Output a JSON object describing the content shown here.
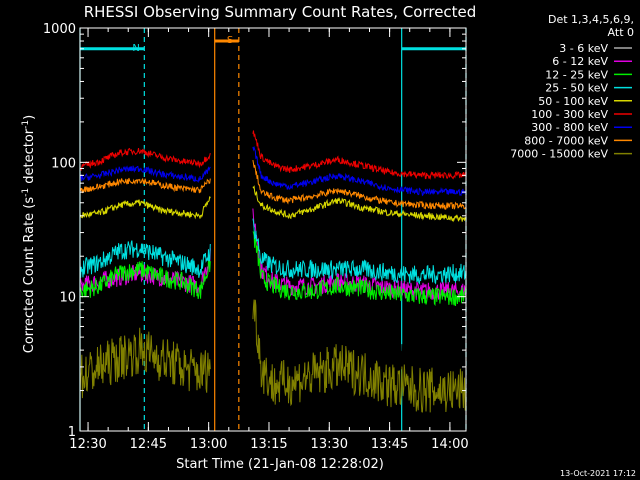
{
  "chart_data": {
    "type": "line",
    "title": "RHESSI Observing Summary Count Rates, Corrected",
    "xlabel": "Start Time (21-Jan-08 12:28:02)",
    "ylabel_main": "Corrected Count Rate (s",
    "ylabel_sup1": "-1",
    "ylabel_mid": " detector",
    "ylabel_sup2": "-1",
    "ylabel_end": ")",
    "yscale": "log",
    "ylim": [
      1,
      1000
    ],
    "xlim_minutes": [
      0,
      96
    ],
    "x_ticks": [
      {
        "min": 2,
        "label": "12:30"
      },
      {
        "min": 17,
        "label": "12:45"
      },
      {
        "min": 32,
        "label": "13:00"
      },
      {
        "min": 47,
        "label": "13:15"
      },
      {
        "min": 62,
        "label": "13:30"
      },
      {
        "min": 77,
        "label": "13:45"
      },
      {
        "min": 92,
        "label": "14:00"
      }
    ],
    "y_ticks": [
      {
        "value": 1,
        "label": "1"
      },
      {
        "value": 10,
        "label": "10"
      },
      {
        "value": 100,
        "label": "100"
      },
      {
        "value": 1000,
        "label": "1000"
      }
    ],
    "legend_header": [
      "Det 1,3,4,5,6,9,",
      "Att 0"
    ],
    "legend_position": "right",
    "series": [
      {
        "name": "3 - 6 keV",
        "color": "#000000",
        "x": [
          0,
          5,
          10,
          15,
          20,
          25,
          30,
          32.5
        ],
        "y": [
          95,
          105,
          120,
          125,
          112,
          104,
          100,
          115
        ]
      },
      {
        "name": "6 - 12 keV",
        "color": "#e000e0",
        "x": [
          0,
          5,
          10,
          15,
          20,
          25,
          30,
          32.5
        ],
        "y": [
          12,
          13,
          14,
          15,
          14,
          13,
          12,
          20
        ]
      },
      {
        "name": "12 - 25 keV",
        "color": "#00ee00",
        "x": [
          0,
          5,
          10,
          15,
          20,
          25,
          30,
          32.5
        ],
        "y": [
          11,
          12,
          15,
          16,
          14,
          13,
          11,
          18
        ]
      },
      {
        "name": "25 - 50 keV",
        "color": "#00e0e0",
        "x": [
          0,
          5,
          10,
          15,
          20,
          25,
          30,
          32.5
        ],
        "y": [
          16,
          18,
          22,
          23,
          20,
          18,
          16,
          22
        ]
      },
      {
        "name": "50 - 100 keV",
        "color": "#d8d800",
        "x": [
          0,
          5,
          10,
          15,
          20,
          25,
          30,
          32.5
        ],
        "y": [
          40,
          42,
          48,
          50,
          44,
          42,
          40,
          55
        ]
      },
      {
        "name": "100 - 300 keV",
        "color": "#ee0000",
        "x": [
          0,
          5,
          10,
          15,
          20,
          25,
          30,
          32.5
        ],
        "y": [
          92,
          102,
          118,
          122,
          110,
          102,
          98,
          115
        ]
      },
      {
        "name": "300 - 800 keV",
        "color": "#0000ee",
        "x": [
          0,
          5,
          10,
          15,
          20,
          25,
          30,
          32.5
        ],
        "y": [
          76,
          80,
          88,
          90,
          82,
          78,
          75,
          90
        ]
      },
      {
        "name": "800 - 7000 keV",
        "color": "#ff8800",
        "x": [
          0,
          5,
          10,
          15,
          20,
          25,
          30,
          32.5
        ],
        "y": [
          62,
          66,
          72,
          74,
          68,
          64,
          62,
          75
        ]
      },
      {
        "name": "7000 - 15000 keV",
        "color": "#808000",
        "x": [
          0,
          5,
          10,
          15,
          20,
          25,
          30,
          32.5
        ],
        "y": [
          2.5,
          3,
          3.5,
          4,
          3.5,
          3,
          2.7,
          3
        ]
      }
    ],
    "series_after_gap": [
      {
        "name": "3 - 6 keV",
        "x": [
          43,
          45,
          48,
          52,
          58,
          64,
          70,
          77,
          85,
          96
        ],
        "y": [
          6,
          3.8,
          3.4,
          3.5,
          4.5,
          5,
          4.8,
          3.5,
          3,
          3
        ]
      },
      {
        "name": "6 - 12 keV",
        "x": [
          43,
          45,
          48,
          52,
          58,
          64,
          70,
          77,
          85,
          96
        ],
        "y": [
          40,
          16,
          13,
          12,
          12,
          13,
          12.5,
          11.5,
          11,
          11
        ]
      },
      {
        "name": "12 - 25 keV",
        "x": [
          43,
          45,
          48,
          52,
          58,
          64,
          70,
          77,
          85,
          96
        ],
        "y": [
          30,
          14,
          12,
          11,
          11,
          12,
          11.5,
          10.5,
          10,
          10
        ]
      },
      {
        "name": "25 - 50 keV",
        "x": [
          43,
          45,
          48,
          52,
          58,
          64,
          70,
          77,
          85,
          96
        ],
        "y": [
          35,
          19,
          17,
          16,
          16,
          16,
          16,
          15,
          14.5,
          15
        ]
      },
      {
        "name": "50 - 100 keV",
        "x": [
          43,
          45,
          48,
          52,
          58,
          64,
          70,
          77,
          85,
          96
        ],
        "y": [
          65,
          48,
          44,
          40,
          45,
          52,
          46,
          42,
          40,
          38
        ]
      },
      {
        "name": "100 - 300 keV",
        "x": [
          43,
          45,
          48,
          52,
          58,
          64,
          70,
          77,
          85,
          96
        ],
        "y": [
          170,
          110,
          95,
          88,
          95,
          105,
          95,
          84,
          80,
          80
        ]
      },
      {
        "name": "300 - 800 keV",
        "x": [
          43,
          45,
          48,
          52,
          58,
          64,
          70,
          77,
          85,
          96
        ],
        "y": [
          130,
          80,
          70,
          66,
          72,
          80,
          72,
          64,
          60,
          60
        ]
      },
      {
        "name": "800 - 7000 keV",
        "x": [
          43,
          45,
          48,
          52,
          58,
          64,
          70,
          77,
          85,
          96
        ],
        "y": [
          100,
          60,
          55,
          52,
          56,
          62,
          56,
          50,
          48,
          47
        ]
      },
      {
        "name": "7000 - 15000 keV",
        "x": [
          43,
          45,
          48,
          52,
          58,
          64,
          70,
          77,
          85,
          96
        ],
        "y": [
          9,
          3,
          2.2,
          2.3,
          2.6,
          3,
          2.7,
          2.2,
          2,
          2
        ]
      }
    ],
    "annotations": [
      {
        "label": "N",
        "color": "#00e0e0",
        "x_start": 0,
        "x_end": 16,
        "level": 700
      },
      {
        "label": "S",
        "color": "#ff8800",
        "x_start": 33.5,
        "x_end": 39.5,
        "level": 800
      },
      {
        "label": "",
        "color": "#00e0e0",
        "x_start": 80,
        "x_end": 96,
        "level": 700
      }
    ],
    "vertical_markers": [
      {
        "x": 0,
        "color": "#00e0e0",
        "style": "solid"
      },
      {
        "x": 16,
        "color": "#00e0e0",
        "style": "dashed"
      },
      {
        "x": 33.5,
        "color": "#ff8800",
        "style": "solid"
      },
      {
        "x": 39.5,
        "color": "#ff8800",
        "style": "dashed"
      },
      {
        "x": 80,
        "color": "#00e0e0",
        "style": "solid"
      },
      {
        "x": 96,
        "color": "#00e0e0",
        "style": "dashed"
      }
    ],
    "footer": "13-Oct-2021 17:12"
  }
}
